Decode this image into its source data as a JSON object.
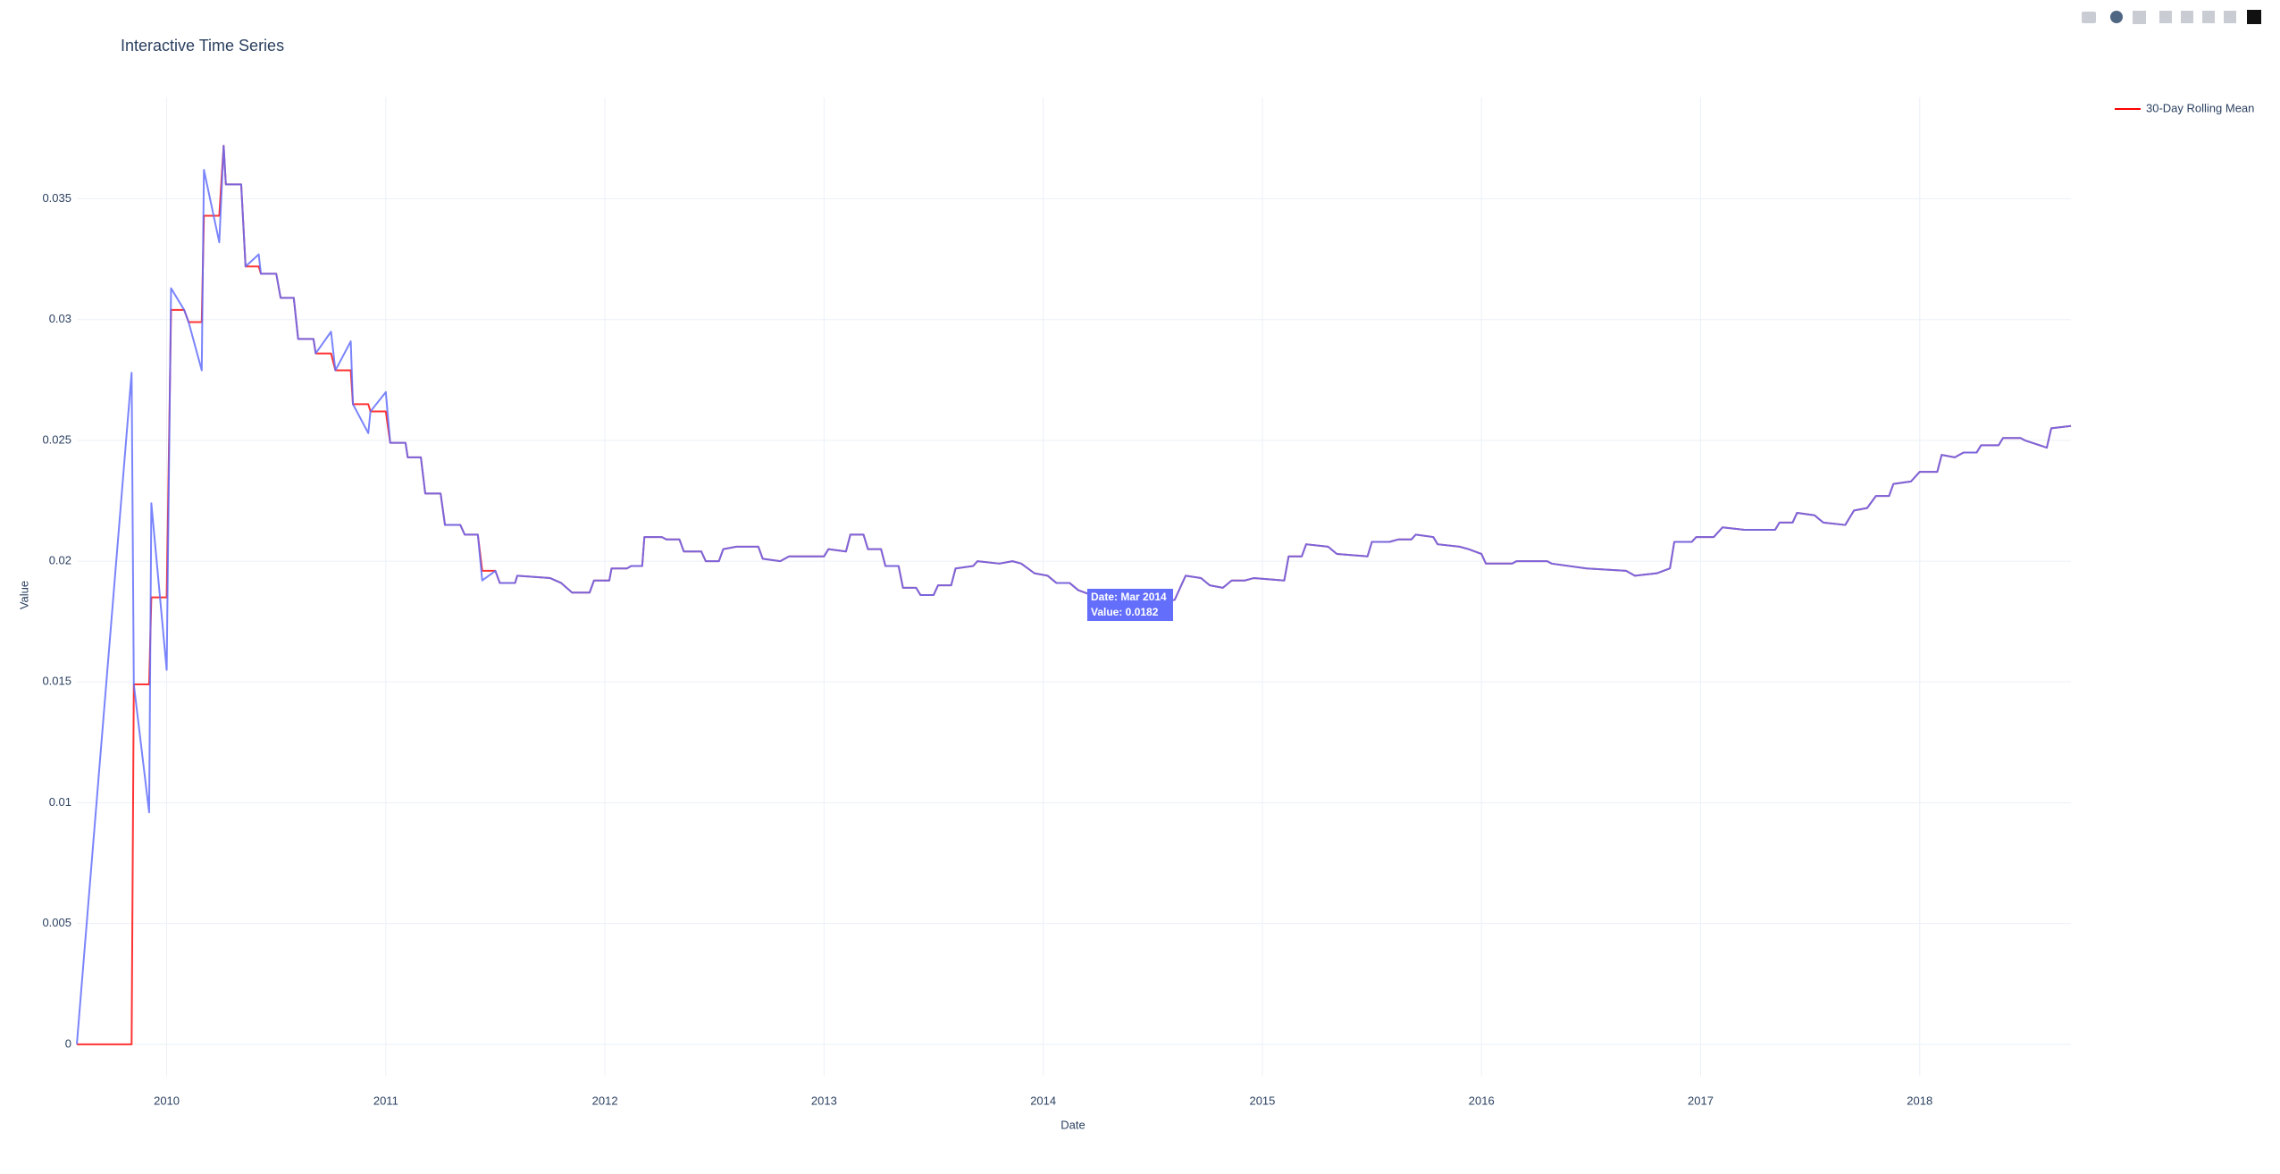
{
  "chart_data": {
    "type": "line",
    "title": "Interactive Time Series",
    "xlabel": "Date",
    "ylabel": "Value",
    "x": [
      2009.59,
      2009.84,
      2009.85,
      2009.92,
      2009.93,
      2010.0,
      2010.02,
      2010.08,
      2010.1,
      2010.16,
      2010.17,
      2010.24,
      2010.26,
      2010.27,
      2010.34,
      2010.36,
      2010.42,
      2010.43,
      2010.5,
      2010.52,
      2010.58,
      2010.6,
      2010.67,
      2010.68,
      2010.75,
      2010.77,
      2010.84,
      2010.85,
      2010.92,
      2010.93,
      2011.0,
      2011.02,
      2011.09,
      2011.1,
      2011.16,
      2011.18,
      2011.25,
      2011.27,
      2011.34,
      2011.36,
      2011.42,
      2011.44,
      2011.5,
      2011.52,
      2011.59,
      2011.6,
      2011.75,
      2011.8,
      2011.85,
      2011.93,
      2011.95,
      2012.02,
      2012.03,
      2012.1,
      2012.12,
      2012.17,
      2012.18,
      2012.26,
      2012.28,
      2012.34,
      2012.36,
      2012.44,
      2012.46,
      2012.52,
      2012.54,
      2012.6,
      2012.7,
      2012.72,
      2012.8,
      2012.84,
      2013.0,
      2013.02,
      2013.1,
      2013.12,
      2013.18,
      2013.2,
      2013.26,
      2013.28,
      2013.34,
      2013.36,
      2013.42,
      2013.44,
      2013.5,
      2013.52,
      2013.58,
      2013.6,
      2013.68,
      2013.7,
      2013.8,
      2013.86,
      2013.9,
      2013.96,
      2014.02,
      2014.06,
      2014.12,
      2014.16,
      2014.22,
      2014.3,
      2014.45,
      2014.6,
      2014.65,
      2014.72,
      2014.76,
      2014.82,
      2014.86,
      2014.92,
      2014.96,
      2015.1,
      2015.12,
      2015.18,
      2015.2,
      2015.3,
      2015.34,
      2015.48,
      2015.5,
      2015.58,
      2015.62,
      2015.68,
      2015.7,
      2015.78,
      2015.8,
      2015.9,
      2015.94,
      2016.0,
      2016.02,
      2016.14,
      2016.16,
      2016.3,
      2016.32,
      2016.48,
      2016.66,
      2016.7,
      2016.8,
      2016.86,
      2016.88,
      2016.96,
      2016.98,
      2017.06,
      2017.1,
      2017.2,
      2017.34,
      2017.36,
      2017.42,
      2017.44,
      2017.52,
      2017.56,
      2017.66,
      2017.7,
      2017.76,
      2017.8,
      2017.86,
      2017.88,
      2017.96,
      2018.0,
      2018.08,
      2018.1,
      2018.16,
      2018.2,
      2018.26,
      2018.28,
      2018.36,
      2018.38,
      2018.46,
      2018.48,
      2018.58,
      2018.6,
      2018.69
    ],
    "series": [
      {
        "color": "#636efa",
        "values": [
          0,
          0.0278,
          0.0149,
          0.0096,
          0.0224,
          0.0155,
          0.0313,
          0.0304,
          0.0299,
          0.0279,
          0.0362,
          0.0332,
          0.0372,
          0.0356,
          0.0356,
          0.0322,
          0.0327,
          0.0319,
          0.0319,
          0.0309,
          0.0309,
          0.0292,
          0.0292,
          0.0286,
          0.0295,
          0.0279,
          0.0291,
          0.0265,
          0.0253,
          0.0262,
          0.027,
          0.0249,
          0.0249,
          0.0243,
          0.0243,
          0.0228,
          0.0228,
          0.0215,
          0.0215,
          0.0211,
          0.0211,
          0.0192,
          0.0196,
          0.0191,
          0.0191,
          0.0194,
          0.0193,
          0.0191,
          0.0187,
          0.0187,
          0.0192,
          0.0192,
          0.0197,
          0.0197,
          0.0198,
          0.0198,
          0.021,
          0.021,
          0.0209,
          0.0209,
          0.0204,
          0.0204,
          0.02,
          0.02,
          0.0205,
          0.0206,
          0.0206,
          0.0201,
          0.02,
          0.0202,
          0.0202,
          0.0205,
          0.0204,
          0.0211,
          0.0211,
          0.0205,
          0.0205,
          0.0198,
          0.0198,
          0.0189,
          0.0189,
          0.0186,
          0.0186,
          0.019,
          0.019,
          0.0197,
          0.0198,
          0.02,
          0.0199,
          0.02,
          0.0199,
          0.0195,
          0.0194,
          0.0191,
          0.0191,
          0.0188,
          0.0186,
          0.0184,
          0.0182,
          0.0184,
          0.0194,
          0.0193,
          0.019,
          0.0189,
          0.0192,
          0.0192,
          0.0193,
          0.0192,
          0.0202,
          0.0202,
          0.0207,
          0.0206,
          0.0203,
          0.0202,
          0.0208,
          0.0208,
          0.0209,
          0.0209,
          0.0211,
          0.021,
          0.0207,
          0.0206,
          0.0205,
          0.0203,
          0.0199,
          0.0199,
          0.02,
          0.02,
          0.0199,
          0.0197,
          0.0196,
          0.0194,
          0.0195,
          0.0197,
          0.0208,
          0.0208,
          0.021,
          0.021,
          0.0214,
          0.0213,
          0.0213,
          0.0216,
          0.0216,
          0.022,
          0.0219,
          0.0216,
          0.0215,
          0.0221,
          0.0222,
          0.0227,
          0.0227,
          0.0232,
          0.0233,
          0.0237,
          0.0237,
          0.0244,
          0.0243,
          0.0245,
          0.0245,
          0.0248,
          0.0248,
          0.0251,
          0.0251,
          0.025,
          0.0247,
          0.0255,
          0.0256
        ]
      },
      {
        "name": "30-Day Rolling Mean",
        "color": "#ff0000",
        "values": [
          0,
          0,
          0.0149,
          0.0149,
          0.0185,
          0.0185,
          0.0304,
          0.0304,
          0.0299,
          0.0299,
          0.0343,
          0.0343,
          0.0372,
          0.0356,
          0.0356,
          0.0322,
          0.0322,
          0.0319,
          0.0319,
          0.0309,
          0.0309,
          0.0292,
          0.0292,
          0.0286,
          0.0286,
          0.0279,
          0.0279,
          0.0265,
          0.0265,
          0.0262,
          0.0262,
          0.0249,
          0.0249,
          0.0243,
          0.0243,
          0.0228,
          0.0228,
          0.0215,
          0.0215,
          0.0211,
          0.0211,
          0.0196,
          0.0196,
          0.0191,
          0.0191,
          0.0194,
          0.0193,
          0.0191,
          0.0187,
          0.0187,
          0.0192,
          0.0192,
          0.0197,
          0.0197,
          0.0198,
          0.0198,
          0.021,
          0.021,
          0.0209,
          0.0209,
          0.0204,
          0.0204,
          0.02,
          0.02,
          0.0205,
          0.0206,
          0.0206,
          0.0201,
          0.02,
          0.0202,
          0.0202,
          0.0205,
          0.0204,
          0.0211,
          0.0211,
          0.0205,
          0.0205,
          0.0198,
          0.0198,
          0.0189,
          0.0189,
          0.0186,
          0.0186,
          0.019,
          0.019,
          0.0197,
          0.0198,
          0.02,
          0.0199,
          0.02,
          0.0199,
          0.0195,
          0.0194,
          0.0191,
          0.0191,
          0.0188,
          0.0186,
          0.0184,
          0.0182,
          0.0184,
          0.0194,
          0.0193,
          0.019,
          0.0189,
          0.0192,
          0.0192,
          0.0193,
          0.0192,
          0.0202,
          0.0202,
          0.0207,
          0.0206,
          0.0203,
          0.0202,
          0.0208,
          0.0208,
          0.0209,
          0.0209,
          0.0211,
          0.021,
          0.0207,
          0.0206,
          0.0205,
          0.0203,
          0.0199,
          0.0199,
          0.02,
          0.02,
          0.0199,
          0.0197,
          0.0196,
          0.0194,
          0.0195,
          0.0197,
          0.0208,
          0.0208,
          0.021,
          0.021,
          0.0214,
          0.0213,
          0.0213,
          0.0216,
          0.0216,
          0.022,
          0.0219,
          0.0216,
          0.0215,
          0.0221,
          0.0222,
          0.0227,
          0.0227,
          0.0232,
          0.0233,
          0.0237,
          0.0237,
          0.0244,
          0.0243,
          0.0245,
          0.0245,
          0.0248,
          0.0248,
          0.0251,
          0.0251,
          0.025,
          0.0247,
          0.0255,
          0.0256
        ]
      }
    ],
    "xlim": [
      2009.59,
      2018.69
    ],
    "xticks": [
      2010,
      2011,
      2012,
      2013,
      2014,
      2015,
      2016,
      2017,
      2018
    ],
    "ylim": [
      -0.0013,
      0.0392
    ],
    "yticks": [
      0,
      0.005,
      0.01,
      0.015,
      0.02,
      0.025,
      0.03,
      0.035
    ],
    "grid": true,
    "legend": "top-right",
    "tooltip": [
      "Date: Mar 2014",
      "Value: 0.0182"
    ]
  }
}
